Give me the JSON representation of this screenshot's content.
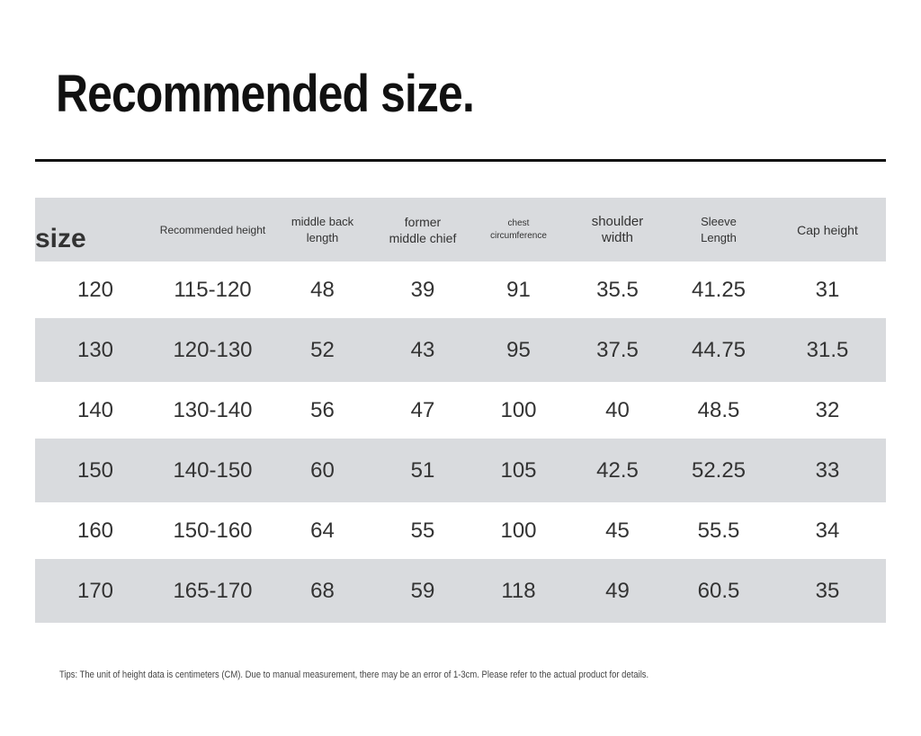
{
  "title": "Recommended size.",
  "table": {
    "header": [
      "size",
      "Recommended height",
      "middle back length",
      "former middle chief",
      "chest circumference",
      "shoulder width",
      "Sleeve Length",
      "Cap height"
    ],
    "rows": [
      [
        "120",
        "115-120",
        "48",
        "39",
        "91",
        "35.5",
        "41.25",
        "31"
      ],
      [
        "130",
        "120-130",
        "52",
        "43",
        "95",
        "37.5",
        "44.75",
        "31.5"
      ],
      [
        "140",
        "130-140",
        "56",
        "47",
        "100",
        "40",
        "48.5",
        "32"
      ],
      [
        "150",
        "140-150",
        "60",
        "51",
        "105",
        "42.5",
        "52.25",
        "33"
      ],
      [
        "160",
        "150-160",
        "64",
        "55",
        "100",
        "45",
        "55.5",
        "34"
      ],
      [
        "170",
        "165-170",
        "68",
        "59",
        "118",
        "49",
        "60.5",
        "35"
      ]
    ]
  },
  "tip": "Tips: The unit of height data is centimeters (CM). Due to manual measurement, there may be an error of 1-3cm. Please refer to the actual product for details."
}
